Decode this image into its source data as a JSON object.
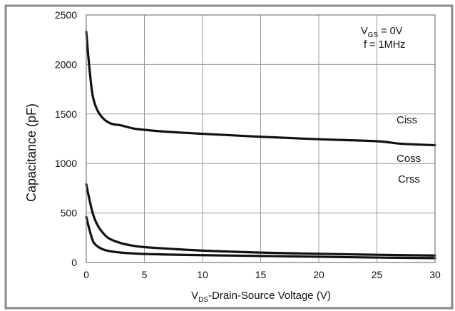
{
  "chart_data": {
    "type": "line",
    "title": "",
    "xlabel": {
      "main": "V",
      "sub": "DS",
      "rest": "-Drain-Source Voltage (V)"
    },
    "ylabel": "Capacitance (pF)",
    "xlim": [
      0,
      30
    ],
    "ylim": [
      0,
      2500
    ],
    "xticks": [
      0,
      5,
      10,
      15,
      20,
      25,
      30
    ],
    "yticks": [
      0,
      500,
      1000,
      1500,
      2000,
      2500
    ],
    "grid": true,
    "annotation": {
      "line1": {
        "main": "V",
        "sub": "GS",
        "rest": " = 0V"
      },
      "line2": "f = 1MHz",
      "placement": "top-right"
    },
    "series": [
      {
        "name": "Ciss",
        "x": [
          0,
          0.2,
          0.5,
          0.8,
          1.2,
          1.7,
          2.2,
          3,
          4,
          5,
          7,
          10,
          15,
          20,
          25,
          27,
          30
        ],
        "y": [
          2330,
          2050,
          1720,
          1580,
          1490,
          1430,
          1400,
          1385,
          1355,
          1340,
          1320,
          1300,
          1270,
          1245,
          1225,
          1200,
          1185
        ]
      },
      {
        "name": "Coss",
        "x": [
          0,
          0.3,
          0.6,
          1,
          1.5,
          2,
          3,
          4,
          5,
          7,
          10,
          15,
          20,
          25,
          30
        ],
        "y": [
          790,
          620,
          480,
          370,
          290,
          240,
          195,
          170,
          155,
          140,
          120,
          100,
          88,
          78,
          70
        ]
      },
      {
        "name": "Crss",
        "x": [
          0,
          0.3,
          0.6,
          1,
          1.5,
          2,
          3,
          4,
          5,
          7,
          10,
          15,
          20,
          25,
          30
        ],
        "y": [
          460,
          320,
          210,
          160,
          130,
          115,
          100,
          92,
          86,
          80,
          74,
          66,
          58,
          50,
          44
        ]
      }
    ]
  }
}
